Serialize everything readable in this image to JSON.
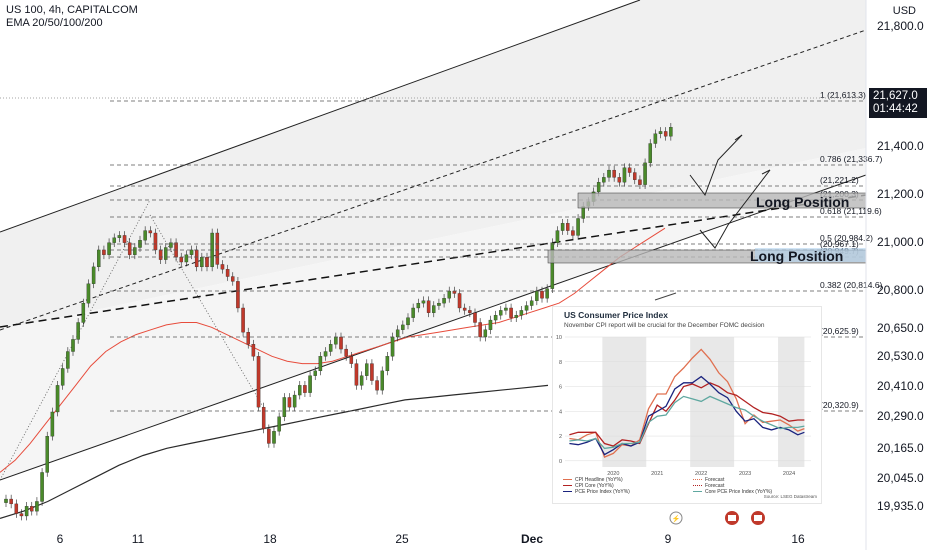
{
  "header": {
    "symbol_line": "US 100, 4h, CAPITALCOM",
    "ema_line": "EMA 20/50/100/200",
    "currency": "USD"
  },
  "price_tag": {
    "price": "21,627.0",
    "countdown": "01:44:42"
  },
  "y_axis": {
    "labels": [
      "21,800.0",
      "21,400.0",
      "21,200.0",
      "21,000.0",
      "20,800.0",
      "20,650.0",
      "20,530.0",
      "20,410.0",
      "20,290.0",
      "20,165.0",
      "20,045.0",
      "19,935.0"
    ]
  },
  "x_axis": {
    "labels": [
      "6",
      "11",
      "18",
      "25",
      "Dec",
      "9",
      "16"
    ]
  },
  "fib_levels": [
    {
      "label": "1 (21,613.3)"
    },
    {
      "label": "0.786 (21,336.7)"
    },
    {
      "label": "(21,221.2)"
    },
    {
      "label": "(21,200.3)"
    },
    {
      "label": "0.618 (21,119.6)"
    },
    {
      "label": "0.5 (20,984.2)"
    },
    {
      "label": "(20,967.1)"
    },
    {
      "label": "(20,949.7)"
    },
    {
      "label": "0.382 (20,814.6)"
    },
    {
      "label": "(20,625.9)"
    },
    {
      "label": "(20,320.9)"
    }
  ],
  "annotations": {
    "long_position_1": "Long Position",
    "long_position_2": "Long Position"
  },
  "colors": {
    "up": "#4a8a2a",
    "down": "#c0392b",
    "ema_red": "#e74c3c",
    "ema_dark": "#2b2b2b",
    "zone": "#b8b8b8"
  },
  "chart_data": [
    {
      "type": "candlestick",
      "title": "US 100, 4h, CAPITALCOM",
      "ylim": [
        19900,
        22050
      ],
      "candles_close": [
        20090,
        20070,
        20030,
        20020,
        20060,
        20040,
        20080,
        20200,
        20350,
        20450,
        20560,
        20630,
        20700,
        20750,
        20820,
        20900,
        20980,
        21050,
        21120,
        21100,
        21150,
        21170,
        21180,
        21150,
        21100,
        21130,
        21160,
        21200,
        21190,
        21120,
        21080,
        21130,
        21150,
        21090,
        21070,
        21100,
        21120,
        21050,
        21090,
        21050,
        21190,
        21060,
        21040,
        21010,
        20990,
        20880,
        20780,
        20730,
        20680,
        20470,
        20380,
        20320,
        20370,
        20430,
        20510,
        20470,
        20520,
        20560,
        20530,
        20600,
        20620,
        20680,
        20700,
        20730,
        20760,
        20710,
        20680,
        20650,
        20560,
        20600,
        20650,
        20580,
        20540,
        20620,
        20680,
        20760,
        20790,
        20810,
        20840,
        20880,
        20900,
        20910,
        20860,
        20890,
        20900,
        20920,
        20950,
        20940,
        20880,
        20870,
        20860,
        20820,
        20760,
        20790,
        20830,
        20850,
        20870,
        20880,
        20840,
        20850,
        20870,
        20890,
        20910,
        20950,
        20920,
        20960,
        21150,
        21200,
        21230,
        21200,
        21180,
        21250,
        21300,
        21320,
        21360,
        21400,
        21420,
        21450,
        21420,
        21400,
        21460,
        21440,
        21410,
        21390,
        21480,
        21560,
        21600,
        21610,
        21590,
        21627
      ],
      "ema_red": [
        20200,
        20250,
        20320,
        20400,
        20480,
        20560,
        20640,
        20700,
        20740,
        20770,
        20790,
        20810,
        20820,
        20820,
        20800,
        20770,
        20740,
        20710,
        20680,
        20660,
        20650,
        20650,
        20660,
        20680,
        20700,
        20720,
        20740,
        20760,
        20770,
        20780,
        20790,
        20800,
        20810,
        20820,
        20840,
        20860,
        20880,
        20900,
        20940,
        20990,
        21040,
        21090,
        21130,
        21170,
        21210
      ],
      "ema_dark": [
        20010,
        20040,
        20080,
        20130,
        20180,
        20230,
        20270,
        20300,
        20320,
        20340,
        20360,
        20380,
        20400,
        20420,
        20440,
        20460,
        20480,
        20500,
        20510,
        20520,
        20530,
        20540,
        20550,
        20560
      ]
    },
    {
      "type": "line",
      "title": "US Consumer Price Index",
      "subtitle": "November CPI report will be crucial for the December FOMC decision",
      "x_ticks": [
        "2020",
        "2021",
        "2022",
        "2023",
        "2024"
      ],
      "y_ticks": [
        "0",
        "2",
        "4",
        "6",
        "8",
        "10"
      ],
      "ylim": [
        -0.5,
        10
      ],
      "source": "Source: LSEG Datastream",
      "legend": [
        {
          "name": "CPI Headline (YoY%)",
          "color": "#e07050",
          "dashed": false
        },
        {
          "name": "Forecast",
          "color": "#e07050",
          "dashed": true
        },
        {
          "name": "CPI Core (YoY%)",
          "color": "#b22222",
          "dashed": false
        },
        {
          "name": "Forecast",
          "color": "#b22222",
          "dashed": true
        },
        {
          "name": "PCE Price Index (YoY%)",
          "color": "#1a237e",
          "dashed": false
        },
        {
          "name": "Core PCE Price Index (YoY%)",
          "color": "#5fa8a0",
          "dashed": false
        }
      ],
      "x_years": [
        2019.5,
        2019.7,
        2019.9,
        2020.1,
        2020.3,
        2020.5,
        2020.7,
        2020.9,
        2021.1,
        2021.3,
        2021.5,
        2021.7,
        2021.9,
        2022.1,
        2022.3,
        2022.5,
        2022.7,
        2022.9,
        2023.1,
        2023.3,
        2023.5,
        2023.7,
        2023.9,
        2024.1,
        2024.3,
        2024.5,
        2024.7,
        2024.85
      ],
      "series": [
        {
          "name": "CPI Headline (YoY%)",
          "color": "#e07050",
          "values": [
            1.8,
            1.7,
            2.1,
            2.3,
            0.3,
            0.6,
            1.3,
            1.2,
            1.7,
            4.2,
            5.4,
            5.4,
            6.8,
            7.5,
            8.3,
            9.0,
            8.2,
            7.1,
            6.4,
            5.0,
            3.0,
            3.7,
            3.1,
            3.2,
            3.3,
            2.9,
            2.4,
            2.6
          ]
        },
        {
          "name": "CPI Core (YoY%)",
          "color": "#b22222",
          "values": [
            2.1,
            2.3,
            2.3,
            2.3,
            1.4,
            1.2,
            1.7,
            1.6,
            1.4,
            3.0,
            4.5,
            4.0,
            4.9,
            6.0,
            6.2,
            5.9,
            6.3,
            6.0,
            5.5,
            5.3,
            4.8,
            4.3,
            3.9,
            3.8,
            3.6,
            3.2,
            3.3,
            3.3
          ]
        },
        {
          "name": "PCE Price Index (YoY%)",
          "color": "#1a237e",
          "values": [
            1.4,
            1.3,
            1.5,
            1.8,
            0.5,
            0.9,
            1.4,
            1.2,
            1.5,
            3.6,
            4.0,
            4.4,
            5.8,
            6.3,
            6.3,
            6.8,
            6.2,
            5.5,
            5.1,
            4.0,
            3.2,
            3.4,
            2.7,
            2.5,
            2.7,
            2.5,
            2.1,
            2.3
          ]
        },
        {
          "name": "Core PCE Price Index (YoY%)",
          "color": "#5fa8a0",
          "values": [
            1.6,
            1.7,
            1.6,
            1.8,
            1.0,
            1.1,
            1.4,
            1.4,
            1.5,
            3.1,
            3.6,
            3.7,
            4.7,
            5.2,
            5.0,
            4.8,
            5.2,
            4.9,
            4.6,
            4.3,
            4.1,
            3.6,
            3.2,
            2.9,
            2.6,
            2.7,
            2.7,
            2.8
          ]
        }
      ]
    }
  ]
}
